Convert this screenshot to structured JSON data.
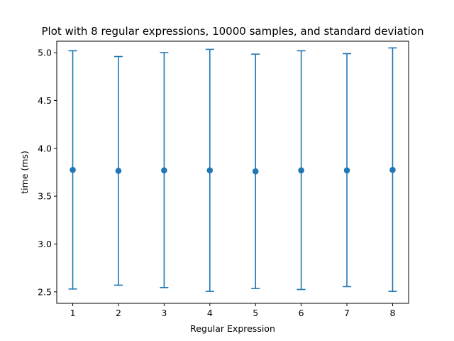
{
  "chart_data": {
    "type": "errorbar",
    "title": "Plot with 8 regular expressions, 10000 samples, and standard deviation",
    "xlabel": "Regular Expression",
    "ylabel": "time (ms)",
    "xlim": [
      0.65,
      8.35
    ],
    "ylim": [
      2.38,
      5.12
    ],
    "x_ticks": [
      "1",
      "2",
      "3",
      "4",
      "5",
      "6",
      "7",
      "8"
    ],
    "y_ticks": [
      "2.5",
      "3.0",
      "3.5",
      "4.0",
      "4.5",
      "5.0"
    ],
    "x": [
      1,
      2,
      3,
      4,
      5,
      6,
      7,
      8
    ],
    "series": [
      {
        "means": [
          3.775,
          3.765,
          3.77,
          3.77,
          3.76,
          3.77,
          3.77,
          3.775
        ],
        "lower": [
          2.53,
          2.57,
          2.545,
          2.505,
          2.535,
          2.525,
          2.555,
          2.505
        ],
        "upper": [
          5.02,
          4.96,
          5.0,
          5.035,
          4.985,
          5.02,
          4.99,
          5.05
        ],
        "color": "#1f77b4"
      }
    ],
    "grid": false
  }
}
